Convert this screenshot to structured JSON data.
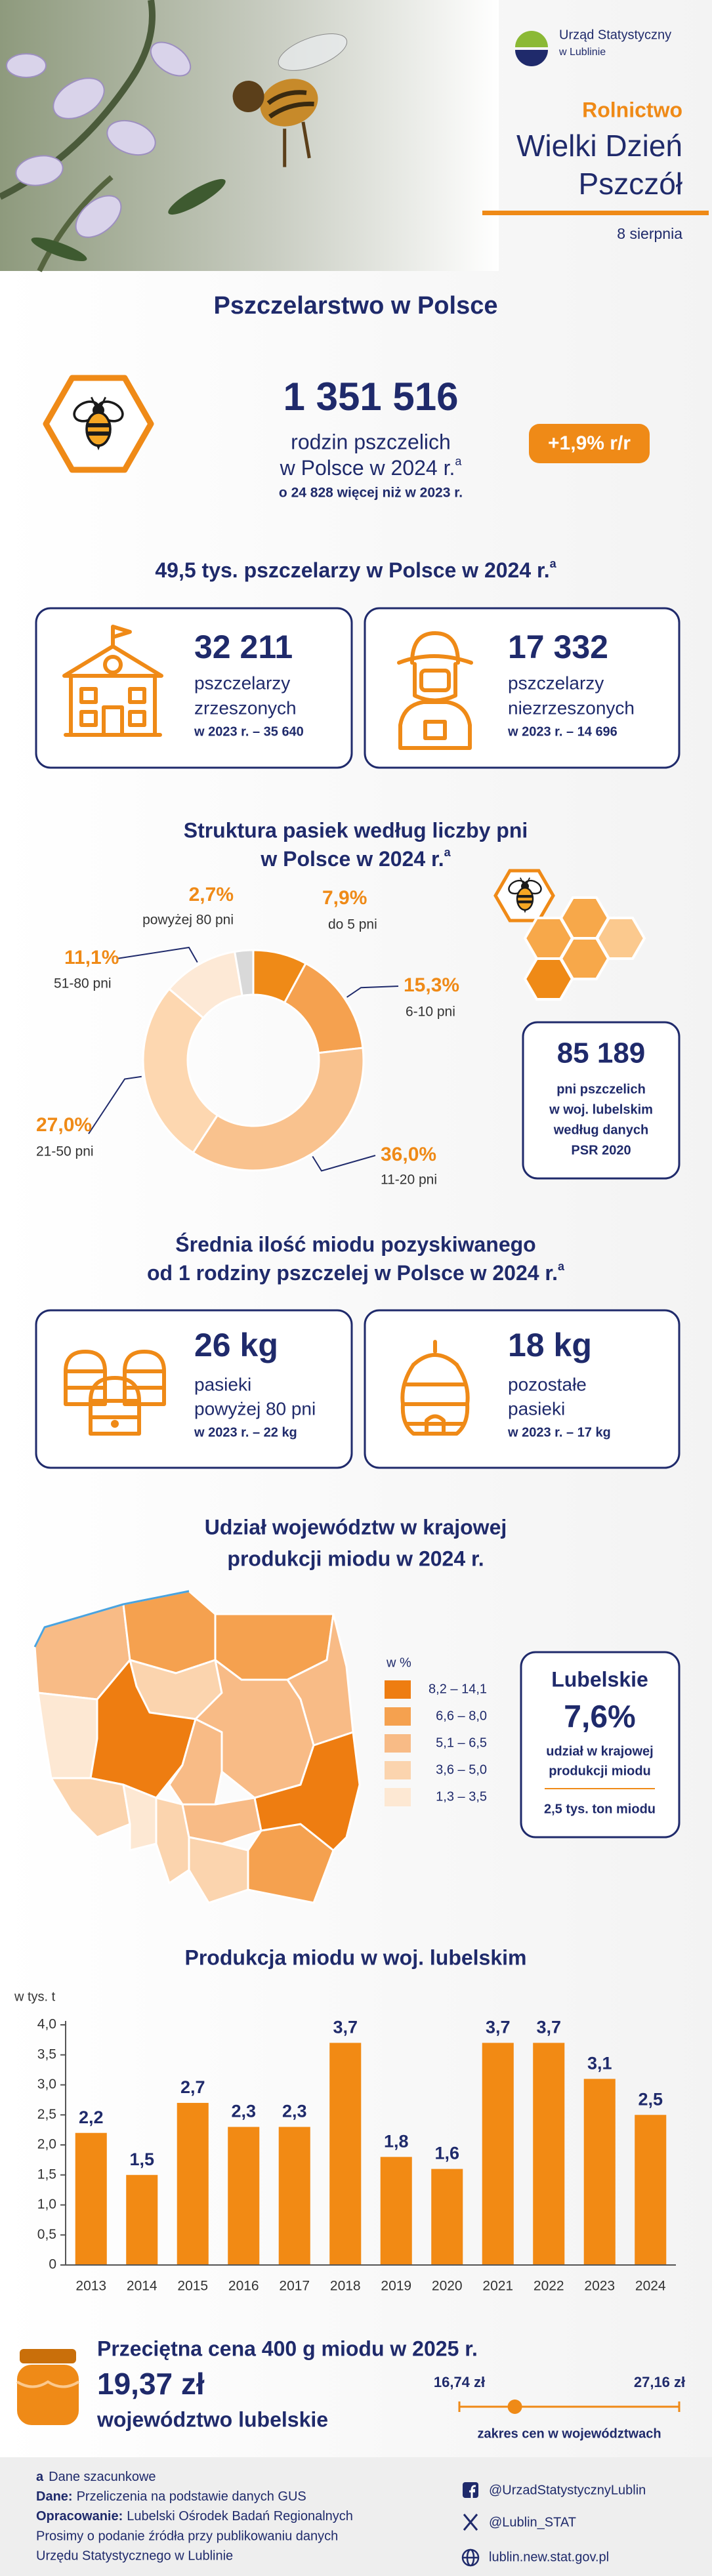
{
  "header": {
    "logo_line1": "Urząd Statystyczny",
    "logo_line2": "w Lublinie",
    "category": "Rolnictwo",
    "title_line1": "Wielki Dzień",
    "title_line2": "Pszczół",
    "date": "8 sierpnia"
  },
  "note_mark": "a",
  "families": {
    "title": "Pszczelarstwo w Polsce",
    "value": "1 351 516",
    "label_line1": "rodzin pszczelich",
    "label_line2": "w Polsce w 2024 r.",
    "change": "o 24 828 więcej niż w 2023 r.",
    "growth": "+1,9% r/r"
  },
  "beekeepers": {
    "title": "49,5 tys. pszczelarzy w Polsce w 2024 r.",
    "cards": [
      {
        "value": "32 211",
        "label_lines": [
          "pszczelarzy",
          "zrzeszonych"
        ],
        "previous": "w 2023 r. – 35 640"
      },
      {
        "value": "17 332",
        "label_lines": [
          "pszczelarzy",
          "niezrzeszonych"
        ],
        "previous": "w 2023 r. – 14 696"
      }
    ]
  },
  "structure": {
    "title_lines": [
      "Struktura pasiek według liczby pni",
      "w Polsce w 2024 r."
    ],
    "lubelskie_box": {
      "value": "85 189",
      "lines": [
        "pni pszczelich",
        "w woj. lubelskim",
        "według danych",
        "PSR 2020"
      ]
    }
  },
  "honey_yield": {
    "title_lines": [
      "Średnia ilość miodu pozyskiwanego",
      "od 1 rodziny pszczelej w Polsce w 2024 r."
    ],
    "cards": [
      {
        "value": "26 kg",
        "label_lines": [
          "pasieki",
          "powyżej 80 pni"
        ],
        "previous": "w 2023 r. – 22 kg"
      },
      {
        "value": "18 kg",
        "label_lines": [
          "pozostałe",
          "pasieki"
        ],
        "previous": "w 2023 r. – 17 kg"
      }
    ]
  },
  "map": {
    "title_lines": [
      "Udział województw w krajowej",
      "produkcji miodu w 2024 r."
    ],
    "legend_title": "w %",
    "legend": [
      {
        "label": "8,2 – 14,1",
        "color": "#ee7d11"
      },
      {
        "label": "6,6 – 8,0",
        "color": "#f5a14f"
      },
      {
        "label": "5,1 – 6,5",
        "color": "#f8bb86"
      },
      {
        "label": "3,6 – 5,0",
        "color": "#fbd4ae"
      },
      {
        "label": "1,3 – 3,5",
        "color": "#fde8d3"
      }
    ],
    "lubelskie": {
      "name": "Lubelskie",
      "share": "7,6%",
      "lines": [
        "udział w krajowej",
        "produkcji miodu"
      ],
      "amount": "2,5 tys. ton miodu"
    }
  },
  "chart_data": [
    {
      "type": "donut",
      "categories": [
        "do 5 pni",
        "6-10 pni",
        "11-20 pni",
        "21-50 pni",
        "51-80 pni",
        "powyżej 80 pni"
      ],
      "values": [
        7.9,
        15.3,
        36.0,
        27.0,
        11.1,
        2.7
      ],
      "value_labels": [
        "7,9%",
        "15,3%",
        "36,0%",
        "27,0%",
        "11,1%",
        "2,7%"
      ],
      "colors": [
        "#ef8a17",
        "#f5a14f",
        "#f9c28e",
        "#fdd7b0",
        "#fde9d6",
        "#d9d9d9"
      ]
    },
    {
      "type": "bar",
      "title": "Produkcja miodu w woj. lubelskim",
      "ylabel": "w tys. t",
      "categories": [
        "2013",
        "2014",
        "2015",
        "2016",
        "2017",
        "2018",
        "2019",
        "2020",
        "2021",
        "2022",
        "2023",
        "2024"
      ],
      "values": [
        2.2,
        1.5,
        2.7,
        2.3,
        2.3,
        3.7,
        1.8,
        1.6,
        3.7,
        3.7,
        3.1,
        2.5
      ],
      "value_labels": [
        "2,2",
        "1,5",
        "2,7",
        "2,3",
        "2,3",
        "3,7",
        "1,8",
        "1,6",
        "3,7",
        "3,7",
        "3,1",
        "2,5"
      ],
      "color": "#f28a14",
      "ylim": [
        0,
        4
      ],
      "yticks": [
        0,
        {
          "value": 0.5,
          "label": "0,5"
        },
        {
          "value": 1,
          "label": "1,0"
        },
        {
          "value": 1.5,
          "label": "1,5"
        },
        {
          "value": 2,
          "label": "2,0"
        },
        {
          "value": 2.5,
          "label": "2,5"
        },
        {
          "value": 3,
          "label": "3,0"
        },
        {
          "value": 3.5,
          "label": "3,5"
        },
        {
          "value": 4,
          "label": "4,0"
        }
      ],
      "grid": false
    },
    {
      "type": "range",
      "title": "Przeciętna cena 400 g miodu w 2025 r.",
      "value": 19.37,
      "value_label": "19,37 zł",
      "subtitle": "województwo lubelskie",
      "min": 16.74,
      "min_label": "16,74 zł",
      "max": 27.16,
      "max_label": "27,16 zł",
      "xlabel": "zakres cen w województwach",
      "color": "#ef8a17"
    }
  ],
  "footer": {
    "note": "Dane szacunkowe",
    "source_label": "Dane:",
    "source": "Przeliczenia na podstawie danych GUS",
    "author_label": "Opracowanie:",
    "author": "Lubelski Ośrodek Badań Regionalnych",
    "request_line1": "Prosimy o podanie źródła przy publikowaniu danych",
    "request_line2": "Urzędu Statystycznego w Lublinie",
    "facebook": "@UrzadStatystycznyLublin",
    "x": "@Lublin_STAT",
    "website": "lublin.new.stat.gov.pl"
  }
}
